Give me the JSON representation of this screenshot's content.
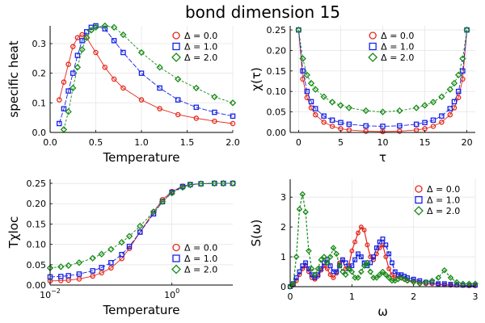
{
  "figure": {
    "title": "bond dimension 15"
  },
  "colors": {
    "s0": "#e4271b",
    "s1": "#1522e6",
    "s2": "#178a17"
  },
  "chart_data": [
    {
      "id": "specific-heat",
      "type": "scatter",
      "xlabel": "Temperature",
      "ylabel": "specific heat",
      "xlim": [
        0,
        2
      ],
      "ylim": [
        0,
        0.36
      ],
      "xscale": "linear",
      "xticks": [
        0,
        0.5,
        1,
        1.5,
        2
      ],
      "xtick_labels": [
        "0.0",
        "0.5",
        "1.0",
        "1.5",
        "2.0"
      ],
      "yticks": [
        0,
        0.1,
        0.2,
        0.3
      ],
      "ytick_labels": [
        "0.0",
        "0.1",
        "0.2",
        "0.3"
      ],
      "grid": true,
      "legend_position": "top-right",
      "series": [
        {
          "name": "Δ = 0.0",
          "marker": "circle",
          "x": [
            0.1,
            0.15,
            0.2,
            0.25,
            0.3,
            0.35,
            0.4,
            0.5,
            0.6,
            0.7,
            0.8,
            1.0,
            1.2,
            1.4,
            1.6,
            1.8,
            2.0
          ],
          "y": [
            0.11,
            0.17,
            0.23,
            0.29,
            0.32,
            0.33,
            0.32,
            0.27,
            0.22,
            0.18,
            0.15,
            0.11,
            0.08,
            0.06,
            0.048,
            0.038,
            0.03
          ]
        },
        {
          "name": "Δ = 1.0",
          "marker": "square",
          "x": [
            0.1,
            0.15,
            0.2,
            0.25,
            0.3,
            0.35,
            0.4,
            0.45,
            0.5,
            0.6,
            0.7,
            0.8,
            1.0,
            1.2,
            1.4,
            1.6,
            1.8,
            2.0
          ],
          "y": [
            0.03,
            0.08,
            0.14,
            0.2,
            0.26,
            0.31,
            0.34,
            0.355,
            0.36,
            0.35,
            0.31,
            0.27,
            0.2,
            0.15,
            0.11,
            0.085,
            0.068,
            0.055
          ]
        },
        {
          "name": "Δ = 2.0",
          "marker": "diamond",
          "x": [
            0.15,
            0.2,
            0.25,
            0.3,
            0.35,
            0.4,
            0.45,
            0.5,
            0.6,
            0.7,
            0.8,
            1.0,
            1.2,
            1.4,
            1.6,
            1.8,
            2.0
          ],
          "y": [
            0.01,
            0.07,
            0.15,
            0.22,
            0.28,
            0.32,
            0.345,
            0.355,
            0.36,
            0.355,
            0.33,
            0.27,
            0.22,
            0.18,
            0.15,
            0.12,
            0.1
          ]
        }
      ]
    },
    {
      "id": "chi-tau",
      "type": "scatter",
      "xlabel": "τ",
      "ylabel": "χ(τ)",
      "xlim": [
        -1,
        21
      ],
      "ylim": [
        0,
        0.26
      ],
      "xscale": "linear",
      "xticks": [
        0,
        5,
        10,
        15,
        20
      ],
      "xtick_labels": [
        "0",
        "5",
        "10",
        "15",
        "20"
      ],
      "yticks": [
        0,
        0.05,
        0.1,
        0.15,
        0.2,
        0.25
      ],
      "ytick_labels": [
        "0.00",
        "0.05",
        "0.10",
        "0.15",
        "0.20",
        "0.25"
      ],
      "grid": true,
      "legend_position": "top-center",
      "series": [
        {
          "name": "Δ = 0.0",
          "marker": "circle",
          "x": [
            0,
            0.5,
            1,
            1.5,
            2,
            3,
            4,
            5,
            6,
            8,
            10,
            12,
            14,
            15,
            16,
            17,
            18,
            18.5,
            19,
            19.5,
            20
          ],
          "y": [
            0.25,
            0.13,
            0.085,
            0.06,
            0.043,
            0.025,
            0.015,
            0.009,
            0.006,
            0.003,
            0.002,
            0.003,
            0.006,
            0.009,
            0.015,
            0.025,
            0.043,
            0.06,
            0.085,
            0.13,
            0.25
          ]
        },
        {
          "name": "Δ = 1.0",
          "marker": "square",
          "x": [
            0,
            0.5,
            1,
            1.5,
            2,
            3,
            4,
            5,
            6,
            8,
            10,
            12,
            14,
            15,
            16,
            17,
            18,
            18.5,
            19,
            19.5,
            20
          ],
          "y": [
            0.25,
            0.15,
            0.1,
            0.075,
            0.058,
            0.04,
            0.03,
            0.024,
            0.02,
            0.016,
            0.015,
            0.016,
            0.02,
            0.024,
            0.03,
            0.04,
            0.058,
            0.075,
            0.1,
            0.15,
            0.25
          ]
        },
        {
          "name": "Δ = 2.0",
          "marker": "diamond",
          "x": [
            0,
            0.5,
            1,
            1.5,
            2,
            3,
            4,
            5,
            6,
            8,
            10,
            12,
            14,
            15,
            16,
            17,
            18,
            18.5,
            19,
            19.5,
            20
          ],
          "y": [
            0.25,
            0.18,
            0.14,
            0.12,
            0.105,
            0.087,
            0.074,
            0.066,
            0.06,
            0.053,
            0.05,
            0.053,
            0.06,
            0.066,
            0.074,
            0.087,
            0.105,
            0.12,
            0.14,
            0.18,
            0.25
          ]
        }
      ]
    },
    {
      "id": "t-chi-loc",
      "type": "scatter",
      "xlabel": "Temperature",
      "ylabel": "Tχloc",
      "xlim": [
        0.01,
        10
      ],
      "ylim": [
        0,
        0.26
      ],
      "xscale": "log",
      "xticks": [
        0.01,
        1
      ],
      "xtick_labels": [
        "10",
        "10"
      ],
      "xtick_exponents": [
        "−2",
        "0"
      ],
      "yticks": [
        0,
        0.05,
        0.1,
        0.15,
        0.2,
        0.25
      ],
      "ytick_labels": [
        "0.00",
        "0.05",
        "0.10",
        "0.15",
        "0.20",
        "0.25"
      ],
      "grid": true,
      "legend_position": "bottom-right",
      "series": [
        {
          "name": "Δ = 0.0",
          "marker": "circle",
          "x": [
            0.01,
            0.015,
            0.02,
            0.03,
            0.05,
            0.07,
            0.1,
            0.15,
            0.2,
            0.3,
            0.5,
            0.7,
            1,
            1.5,
            2,
            3,
            5,
            7,
            10
          ],
          "y": [
            0.01,
            0.011,
            0.012,
            0.015,
            0.022,
            0.03,
            0.042,
            0.065,
            0.09,
            0.13,
            0.18,
            0.21,
            0.23,
            0.243,
            0.247,
            0.249,
            0.25,
            0.25,
            0.25
          ]
        },
        {
          "name": "Δ = 1.0",
          "marker": "square",
          "x": [
            0.01,
            0.015,
            0.02,
            0.03,
            0.05,
            0.07,
            0.1,
            0.15,
            0.2,
            0.3,
            0.5,
            0.7,
            1,
            1.5,
            2,
            3,
            5,
            7,
            10
          ],
          "y": [
            0.02,
            0.021,
            0.023,
            0.027,
            0.035,
            0.043,
            0.055,
            0.075,
            0.095,
            0.13,
            0.175,
            0.205,
            0.228,
            0.242,
            0.247,
            0.249,
            0.25,
            0.25,
            0.25
          ]
        },
        {
          "name": "Δ = 2.0",
          "marker": "diamond",
          "x": [
            0.01,
            0.015,
            0.02,
            0.03,
            0.05,
            0.07,
            0.1,
            0.15,
            0.2,
            0.3,
            0.5,
            0.7,
            1,
            1.5,
            2,
            3,
            5,
            7,
            10
          ],
          "y": [
            0.042,
            0.045,
            0.048,
            0.055,
            0.066,
            0.076,
            0.088,
            0.105,
            0.12,
            0.145,
            0.18,
            0.205,
            0.226,
            0.24,
            0.246,
            0.249,
            0.25,
            0.25,
            0.25
          ]
        }
      ]
    },
    {
      "id": "s-omega",
      "type": "line",
      "xlabel": "ω",
      "ylabel": "S(ω)",
      "xlim": [
        0,
        3
      ],
      "ylim": [
        0,
        3.6
      ],
      "xscale": "linear",
      "xticks": [
        0,
        1,
        2,
        3
      ],
      "xtick_labels": [
        "0",
        "1",
        "2",
        "3"
      ],
      "yticks": [
        0,
        1,
        2,
        3
      ],
      "ytick_labels": [
        "0",
        "1",
        "2",
        "3"
      ],
      "grid": true,
      "legend_position": "top-right",
      "series": [
        {
          "name": "Δ = 0.0",
          "marker": "circle",
          "x": [
            0,
            0.05,
            0.1,
            0.15,
            0.2,
            0.25,
            0.3,
            0.35,
            0.4,
            0.45,
            0.5,
            0.55,
            0.6,
            0.65,
            0.7,
            0.75,
            0.8,
            0.85,
            0.9,
            0.95,
            1.0,
            1.05,
            1.1,
            1.15,
            1.2,
            1.25,
            1.3,
            1.35,
            1.4,
            1.45,
            1.5,
            1.55,
            1.6,
            1.65,
            1.7,
            1.75,
            1.8,
            1.85,
            1.9,
            2.0,
            2.1,
            2.2,
            2.3,
            2.4,
            2.5,
            2.6,
            2.7,
            2.8,
            2.9,
            3.0
          ],
          "y": [
            0.0,
            0.05,
            0.2,
            0.4,
            0.6,
            0.7,
            0.5,
            0.3,
            0.25,
            0.35,
            0.55,
            0.7,
            0.6,
            0.4,
            0.3,
            0.45,
            0.8,
            0.9,
            0.6,
            0.7,
            1.2,
            1.5,
            1.8,
            2.0,
            1.9,
            1.4,
            1.0,
            0.9,
            1.1,
            1.3,
            1.4,
            1.0,
            0.6,
            0.4,
            0.3,
            0.35,
            0.3,
            0.25,
            0.2,
            0.2,
            0.15,
            0.1,
            0.1,
            0.08,
            0.06,
            0.05,
            0.05,
            0.04,
            0.03,
            0.03
          ]
        },
        {
          "name": "Δ = 1.0",
          "marker": "square",
          "x": [
            0,
            0.05,
            0.1,
            0.15,
            0.2,
            0.25,
            0.3,
            0.35,
            0.4,
            0.45,
            0.5,
            0.55,
            0.6,
            0.65,
            0.7,
            0.75,
            0.8,
            0.85,
            0.9,
            0.95,
            1.0,
            1.05,
            1.1,
            1.15,
            1.2,
            1.25,
            1.3,
            1.35,
            1.4,
            1.45,
            1.5,
            1.55,
            1.6,
            1.65,
            1.7,
            1.75,
            1.8,
            1.85,
            1.9,
            2.0,
            2.1,
            2.2,
            2.3,
            2.4,
            2.5,
            2.6,
            2.7,
            2.8,
            2.9,
            3.0
          ],
          "y": [
            0.0,
            0.1,
            0.3,
            0.5,
            0.7,
            0.8,
            0.6,
            0.4,
            0.3,
            0.4,
            0.6,
            0.8,
            0.9,
            0.7,
            0.5,
            0.5,
            0.7,
            0.9,
            0.8,
            0.6,
            0.7,
            0.9,
            1.1,
            1.0,
            0.8,
            0.7,
            0.8,
            1.0,
            1.3,
            1.5,
            1.6,
            1.4,
            1.1,
            0.8,
            0.5,
            0.4,
            0.4,
            0.35,
            0.3,
            0.25,
            0.2,
            0.15,
            0.15,
            0.1,
            0.1,
            0.08,
            0.06,
            0.05,
            0.05,
            0.05
          ]
        },
        {
          "name": "Δ = 2.0",
          "marker": "diamond",
          "x": [
            0,
            0.05,
            0.1,
            0.15,
            0.2,
            0.25,
            0.3,
            0.35,
            0.4,
            0.45,
            0.5,
            0.55,
            0.6,
            0.65,
            0.7,
            0.75,
            0.8,
            0.85,
            0.9,
            0.95,
            1.0,
            1.05,
            1.1,
            1.15,
            1.2,
            1.25,
            1.3,
            1.35,
            1.4,
            1.45,
            1.5,
            1.55,
            1.6,
            1.65,
            1.7,
            1.75,
            1.8,
            1.85,
            1.9,
            2.0,
            2.1,
            2.2,
            2.3,
            2.4,
            2.5,
            2.6,
            2.7,
            2.8,
            2.9,
            3.0
          ],
          "y": [
            0.0,
            0.1,
            1.0,
            2.6,
            3.1,
            2.5,
            1.2,
            0.6,
            0.4,
            0.6,
            0.9,
            1.0,
            0.8,
            1.0,
            1.3,
            1.1,
            0.7,
            0.5,
            0.4,
            0.6,
            0.5,
            0.3,
            0.3,
            0.5,
            0.7,
            0.8,
            0.5,
            0.3,
            0.3,
            0.4,
            0.5,
            0.4,
            0.3,
            0.2,
            0.2,
            0.25,
            0.3,
            0.25,
            0.2,
            0.15,
            0.1,
            0.15,
            0.2,
            0.3,
            0.55,
            0.3,
            0.15,
            0.1,
            0.1,
            0.1
          ]
        }
      ]
    }
  ]
}
